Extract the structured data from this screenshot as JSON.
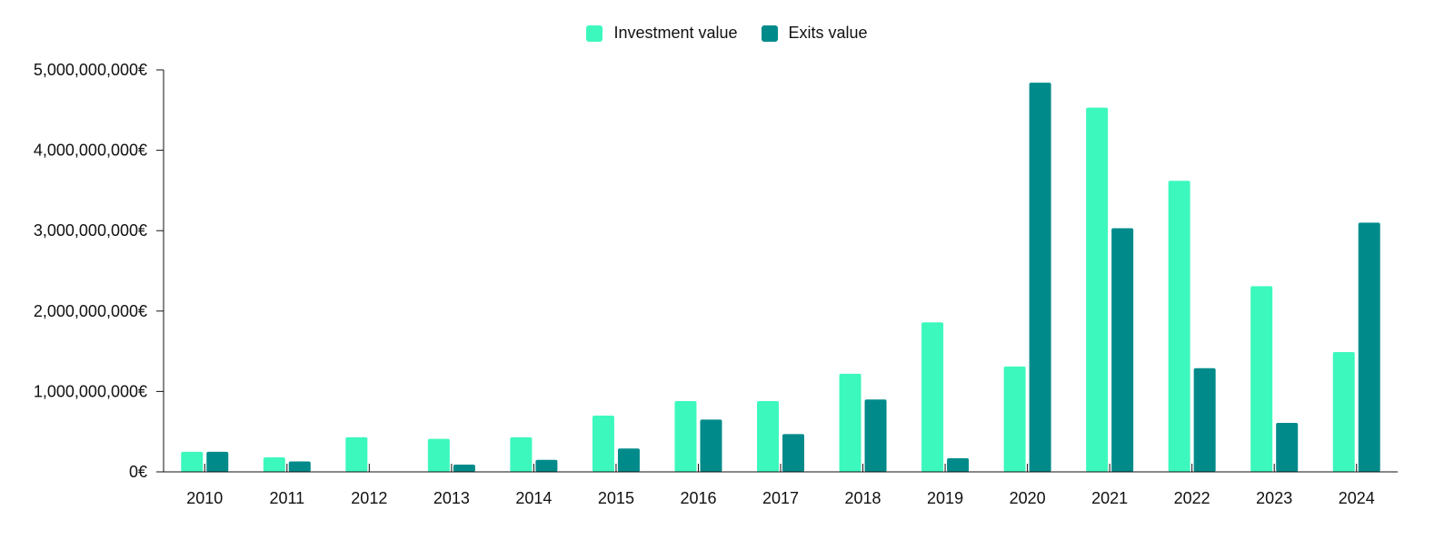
{
  "chart_data": {
    "type": "bar",
    "categories": [
      "2010",
      "2011",
      "2012",
      "2013",
      "2014",
      "2015",
      "2016",
      "2017",
      "2018",
      "2019",
      "2020",
      "2021",
      "2022",
      "2023",
      "2024"
    ],
    "series": [
      {
        "name": "Investment value",
        "color": "#3cf8bd",
        "values": [
          250000000,
          180000000,
          430000000,
          410000000,
          430000000,
          700000000,
          880000000,
          880000000,
          1220000000,
          1860000000,
          1310000000,
          4530000000,
          3620000000,
          2310000000,
          1490000000
        ]
      },
      {
        "name": "Exits value",
        "color": "#008b8a",
        "values": [
          250000000,
          130000000,
          0,
          90000000,
          150000000,
          290000000,
          650000000,
          470000000,
          900000000,
          170000000,
          4840000000,
          3030000000,
          1290000000,
          610000000,
          3100000000
        ]
      }
    ],
    "yticks": [
      "0€",
      "1,000,000,000€",
      "2,000,000,000€",
      "3,000,000,000€",
      "4,000,000,000€",
      "5,000,000,000€"
    ],
    "ylim": [
      0,
      5000000000
    ],
    "grid": false,
    "legend_position": "top-center",
    "title": "",
    "xlabel": "",
    "ylabel": ""
  }
}
